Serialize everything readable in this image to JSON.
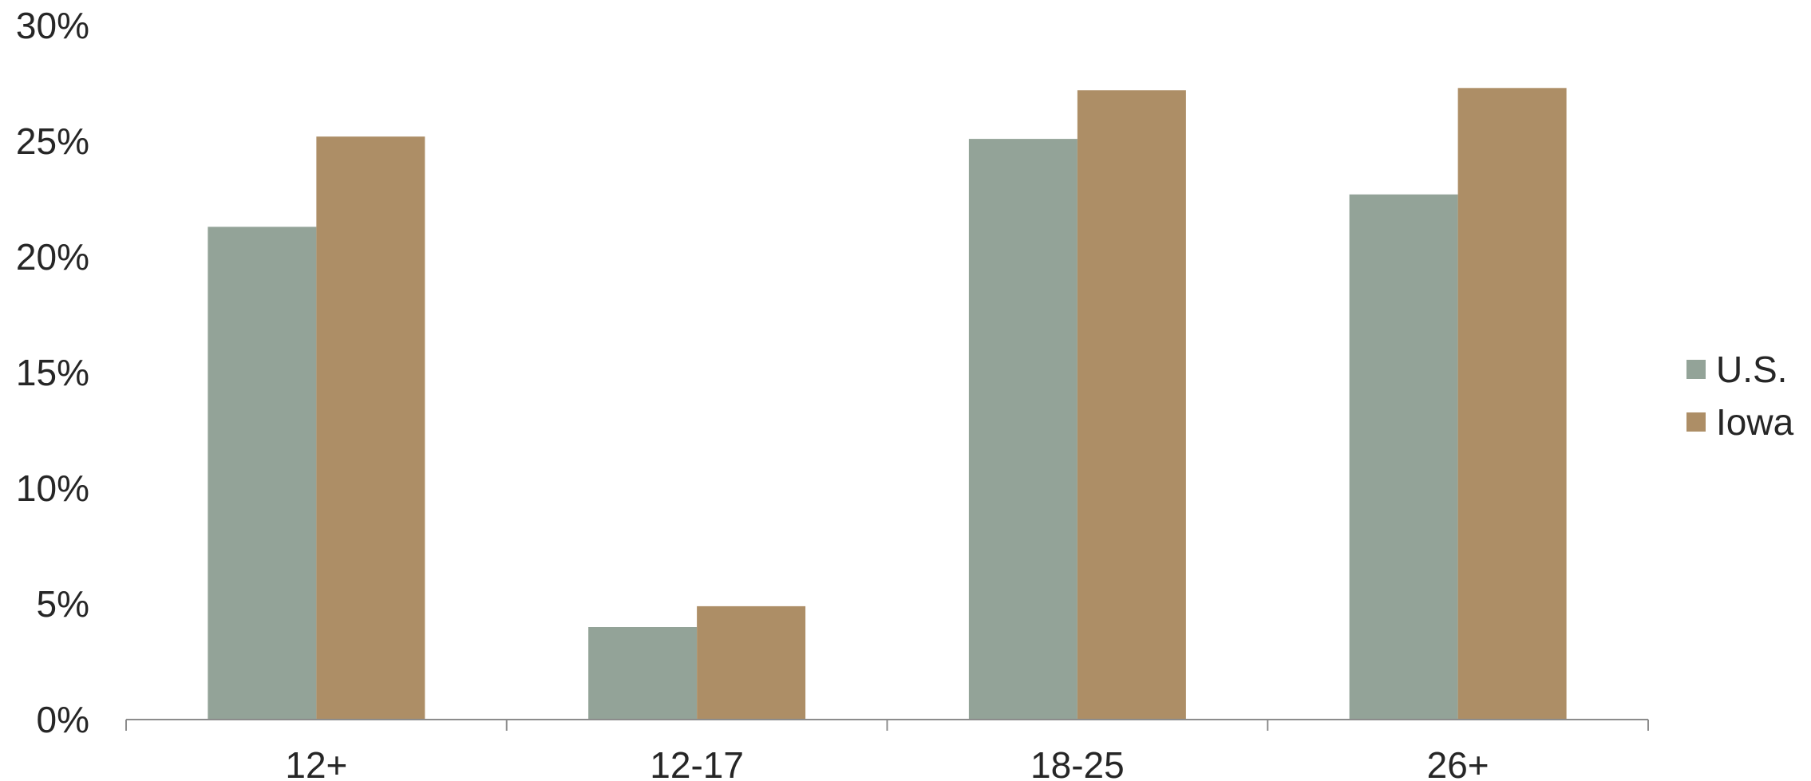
{
  "chart_data": {
    "type": "bar",
    "categories": [
      "12+",
      "12-17",
      "18-25",
      "26+"
    ],
    "series": [
      {
        "name": "U.S.",
        "values": [
          21.3,
          4.0,
          25.1,
          22.7
        ],
        "color": "#93a398"
      },
      {
        "name": "Iowa",
        "values": [
          25.2,
          4.9,
          27.2,
          27.3
        ],
        "color": "#ad8e66"
      }
    ],
    "y_ticks": [
      "0%",
      "5%",
      "10%",
      "15%",
      "20%",
      "25%",
      "30%"
    ],
    "ylim": [
      0,
      30
    ],
    "grid": false,
    "legend_position": "right"
  }
}
